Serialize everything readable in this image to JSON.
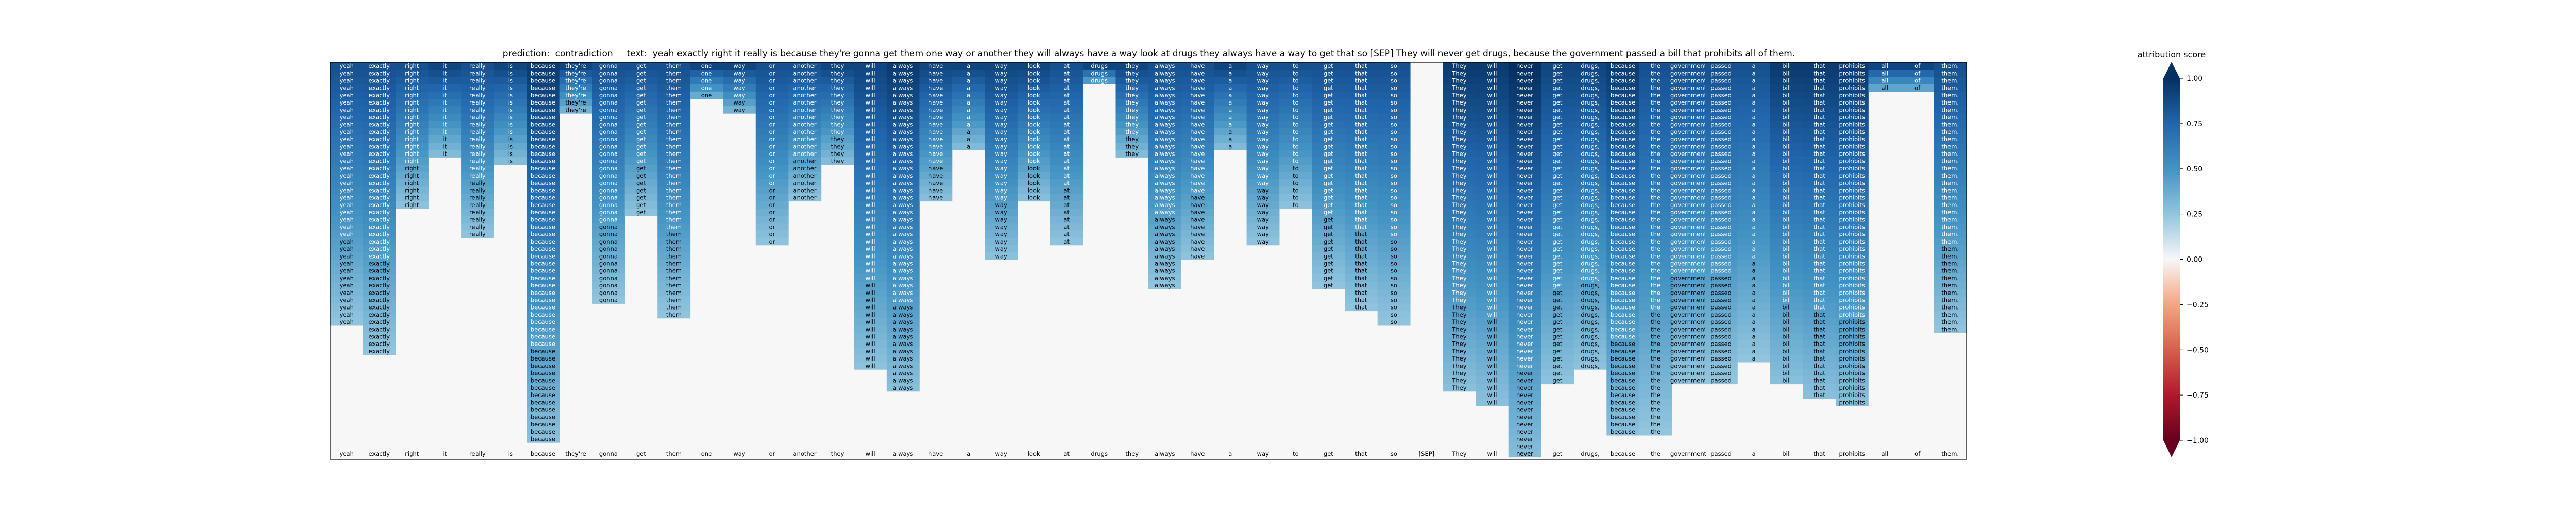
{
  "title": {
    "prediction_label": "prediction:",
    "prediction": "contradiction",
    "text_label": "text:",
    "text": "yeah exactly right it really is because they're gonna get them one way or another they will always have a way look at drugs they always have a way to get that so [SEP] They will never get drugs, because the government passed a bill that prohibits all of them."
  },
  "colorbar": {
    "label": "attribution score",
    "ticks": [
      "1.00",
      "0.75",
      "0.50",
      "0.25",
      "0.00",
      "−0.25",
      "−0.50",
      "−0.75",
      "−1.00"
    ]
  },
  "chart_data": {
    "type": "heatmap",
    "title": "prediction:  contradiction     text:  yeah exactly right it really is because they're gonna get them one way or another they will always have a way look at drugs they always have a way to get that so [SEP] They will never get drugs, because the government passed a bill that prohibits all of them.",
    "xlabel": "",
    "ylabel": "",
    "colorbar_label": "attribution score",
    "colorbar_range": [
      -1.0,
      1.0
    ],
    "colormap": "RdBu",
    "tokens": [
      "yeah",
      "exactly",
      "right",
      "it",
      "really",
      "is",
      "because",
      "they're",
      "gonna",
      "get",
      "them",
      "one",
      "way",
      "or",
      "another",
      "they",
      "will",
      "always",
      "have",
      "a",
      "way",
      "look",
      "at",
      "drugs",
      "they",
      "always",
      "have",
      "a",
      "way",
      "to",
      "get",
      "that",
      "so",
      "[SEP]",
      "They",
      "will",
      "never",
      "get",
      "drugs,",
      "because",
      "the",
      "government",
      "passed",
      "a",
      "bill",
      "that",
      "prohibits",
      "all",
      "of",
      "them."
    ],
    "rows": 52,
    "column_heights": [
      36,
      40,
      20,
      13,
      24,
      14,
      52,
      7,
      33,
      21,
      35,
      5,
      7,
      25,
      19,
      14,
      42,
      45,
      19,
      12,
      27,
      19,
      25,
      3,
      13,
      31,
      27,
      12,
      25,
      20,
      31,
      34,
      36,
      0,
      45,
      47,
      54,
      44,
      42,
      51,
      51,
      44,
      44,
      41,
      44,
      46,
      47,
      4,
      4,
      37
    ],
    "column_strengths": [
      0.85,
      0.85,
      0.85,
      0.9,
      0.85,
      0.9,
      0.95,
      0.9,
      0.85,
      0.85,
      0.85,
      0.9,
      0.9,
      0.85,
      0.85,
      0.9,
      0.9,
      0.95,
      0.9,
      0.9,
      0.9,
      0.9,
      0.85,
      0.9,
      0.9,
      0.85,
      0.85,
      0.9,
      0.85,
      0.85,
      0.85,
      0.85,
      0.85,
      0.0,
      0.95,
      0.95,
      1.0,
      0.9,
      0.9,
      0.95,
      0.85,
      0.85,
      0.85,
      0.85,
      0.95,
      0.95,
      0.95,
      0.9,
      0.9,
      0.85
    ]
  }
}
